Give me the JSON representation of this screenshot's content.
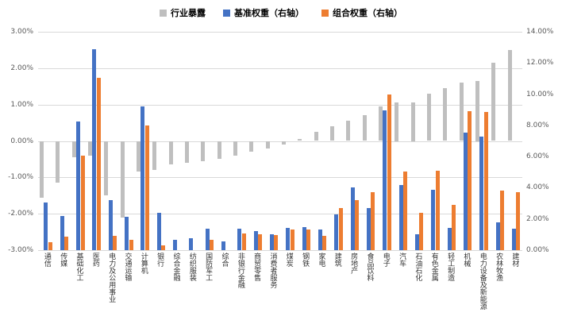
{
  "chart_data": {
    "type": "bar",
    "title": "",
    "legend_position": "top",
    "grid": true,
    "categories": [
      "通信",
      "传媒",
      "基础化工",
      "医药",
      "电力及公用事业",
      "交通运输",
      "计算机",
      "银行",
      "综合金融",
      "纺织服装",
      "国防军工",
      "综合",
      "非银行金融",
      "商贸零售",
      "消费者服务",
      "煤炭",
      "钢铁",
      "家电",
      "建筑",
      "房地产",
      "食品饮料",
      "电子",
      "汽车",
      "石油石化",
      "有色金属",
      "轻工制造",
      "机械",
      "电力设备及新能源",
      "农林牧渔",
      "建材"
    ],
    "series": [
      {
        "name": "行业暴露",
        "key": "exposure",
        "axis": "left",
        "color": "#BFBFBF",
        "values": [
          -1.55,
          -1.15,
          -0.45,
          -0.4,
          -1.5,
          -2.1,
          -0.85,
          -0.8,
          -0.65,
          -0.6,
          -0.55,
          -0.5,
          -0.4,
          -0.3,
          -0.2,
          -0.1,
          0.05,
          0.25,
          0.4,
          0.55,
          0.7,
          0.95,
          1.05,
          1.05,
          1.3,
          1.45,
          1.6,
          1.65,
          2.15,
          2.5
        ]
      },
      {
        "name": "基准权重（右轴）",
        "key": "benchmark",
        "axis": "right",
        "color": "#4472C4",
        "values": [
          3.05,
          2.2,
          8.25,
          12.9,
          3.2,
          2.15,
          9.2,
          2.4,
          0.65,
          0.75,
          1.35,
          0.55,
          1.4,
          1.2,
          1.0,
          1.45,
          1.5,
          1.3,
          2.3,
          4.0,
          2.7,
          8.95,
          4.2,
          1.0,
          3.85,
          1.45,
          7.55,
          7.3,
          1.8,
          1.4
        ]
      },
      {
        "name": "组合权重（右轴）",
        "key": "portfolio",
        "axis": "right",
        "color": "#ED7D31",
        "values": [
          0.5,
          0.85,
          6.05,
          11.05,
          0.9,
          0.65,
          8.0,
          0.3,
          0,
          0,
          0.65,
          0,
          1.05,
          1.0,
          0.95,
          1.3,
          1.3,
          0.9,
          2.7,
          3.2,
          3.7,
          10.0,
          5.05,
          2.4,
          5.1,
          2.9,
          8.9,
          8.85,
          3.8,
          3.7
        ]
      }
    ],
    "left_axis": {
      "min": -3,
      "max": 3,
      "ticks": [
        "3.00%",
        "2.00%",
        "1.00%",
        "0.00%",
        "-1.00%",
        "-2.00%",
        "-3.00%"
      ]
    },
    "right_axis": {
      "min": 0,
      "max": 14,
      "ticks": [
        "14.00%",
        "12.00%",
        "10.00%",
        "8.00%",
        "6.00%",
        "4.00%",
        "2.00%",
        "0.00%"
      ]
    }
  }
}
